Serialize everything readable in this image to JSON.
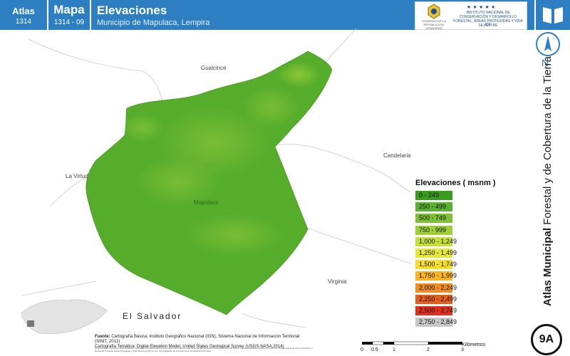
{
  "header": {
    "atlas_label": "Atlas",
    "atlas_code": "1314",
    "mapa_label": "Mapa",
    "mapa_code": "1314 - 09",
    "title": "Elevaciones",
    "subtitle": "Municipio de Mapulaca, Lempira"
  },
  "logos": {
    "gobierno": "GOBIERNO DE LA REPÚBLICA DE HONDURAS",
    "instituto": "INSTITUTO NACIONAL DE CONSERVACIÓN Y DESARROLLO FORESTAL, ÁREAS PROTEGIDAS Y VIDA SILVESTRE",
    "instituto_abbr": "ICF"
  },
  "icons": [
    "book-icon",
    "north-arrow-icon"
  ],
  "north_letter": "N",
  "sidebar": {
    "title_bold": "Atlas Municipal",
    "title_rest": " Forestal y de Cobertura de la Tierra"
  },
  "page_badge": "9A",
  "map_labels": {
    "gualcince": "Gualcince",
    "la_virtud": "La Virtud",
    "candelaria": "Candelaria",
    "virginia": "Virginia",
    "mapulaca": "Mapulaca",
    "el_salvador": "El Salvador"
  },
  "legend": {
    "title": "Elevaciones ( msnm )",
    "items": [
      {
        "label": "0 - 249",
        "color": "#3a9c1e"
      },
      {
        "label": "250 - 499",
        "color": "#5cb031"
      },
      {
        "label": "500 - 749",
        "color": "#7dbf35"
      },
      {
        "label": "750 - 999",
        "color": "#9ccf38"
      },
      {
        "label": "1,000 - 1,249",
        "color": "#c3df3a"
      },
      {
        "label": "1,250 - 1,499",
        "color": "#e4e83a"
      },
      {
        "label": "1,500 - 1,749",
        "color": "#f6dd2b"
      },
      {
        "label": "1,750 - 1,999",
        "color": "#f7b526"
      },
      {
        "label": "2,000 - 2,249",
        "color": "#f08c22"
      },
      {
        "label": "2,250 - 2,499",
        "color": "#e65e1e"
      },
      {
        "label": "2,500 - 2,749",
        "color": "#dd2f1e"
      },
      {
        "label": "2,750 - 2,849",
        "color": "#c8c8c8"
      }
    ]
  },
  "fuente": {
    "label": "Fuente:",
    "line1": "Cartografía Básica: Instituto Geográfico Nacional (IGN), Sistema Nacional de Información Territorial (SINIT, 2012)",
    "line2": "Cartografía Temática: Digital Elevation Model, United States Geological Survey (USGS-NASA,2014)"
  },
  "nota": "Nota Técnica: Los límites administrativos y forestales representados en este mapa tienen fuentes del Sistema Nacional de Información Territorial (SINIT) y la representación gráfica por parte del Instituto Nacional de Conservación y Desarrollo Forestal, Áreas Protegidas y Vida Silvestre (ICF) no son una validación de los mismos en la ubicación del mapa.",
  "scale": {
    "ticks": [
      "0",
      "0.5",
      "1",
      "2",
      "3"
    ],
    "unit": "Kilómetros"
  }
}
